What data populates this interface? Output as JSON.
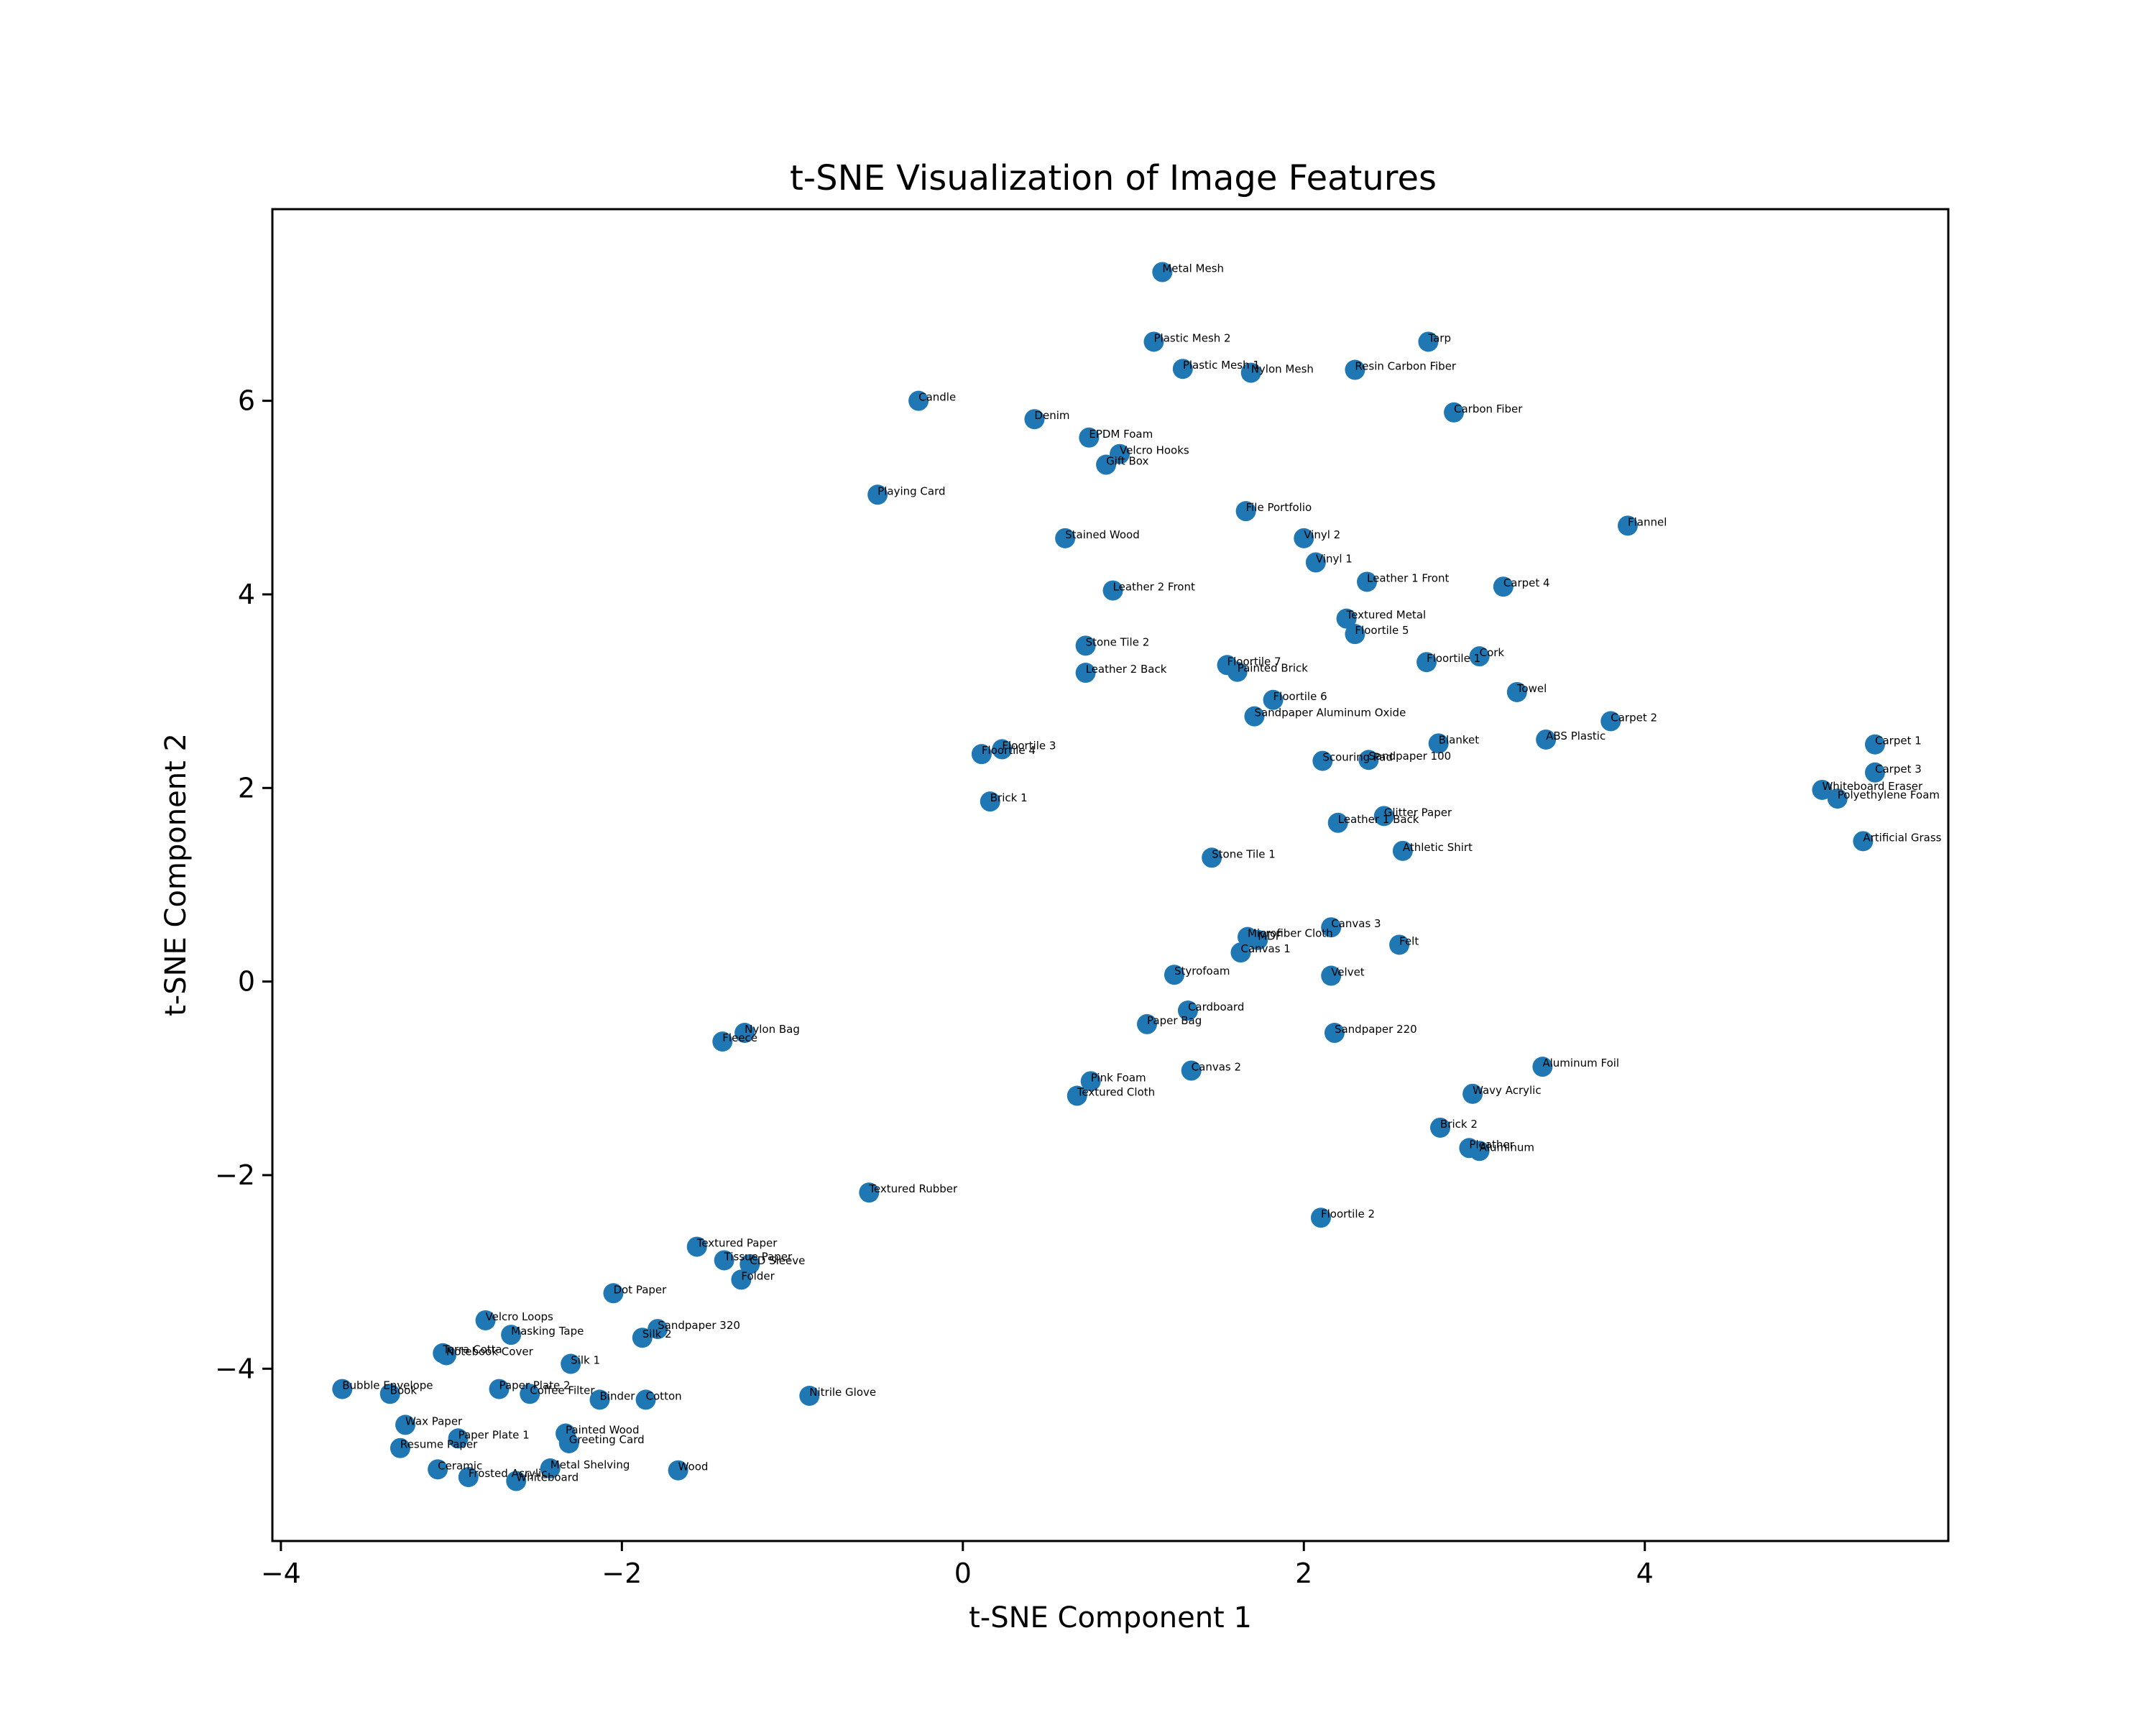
{
  "chart_data": {
    "type": "scatter",
    "title": "t-SNE Visualization of Image Features",
    "xlabel": "t-SNE Component 1",
    "ylabel": "t-SNE Component 2",
    "xlim": [
      -4.05,
      5.78
    ],
    "ylim": [
      -5.78,
      7.98
    ],
    "xticks": [
      -4,
      -2,
      0,
      2,
      4
    ],
    "yticks": [
      -4,
      -2,
      0,
      2,
      4,
      6
    ],
    "xtick_labels": [
      "−4",
      "−2",
      "0",
      "2",
      "4"
    ],
    "ytick_labels": [
      "−4",
      "−2",
      "0",
      "2",
      "4",
      "6"
    ],
    "grid": false,
    "marker_color": "#1f77b4",
    "points": [
      {
        "label": "Metal Mesh",
        "x": 1.17,
        "y": 7.33
      },
      {
        "label": "Plastic Mesh 2",
        "x": 1.12,
        "y": 6.61
      },
      {
        "label": "Plastic Mesh 1",
        "x": 1.29,
        "y": 6.33
      },
      {
        "label": "Nylon Mesh",
        "x": 1.69,
        "y": 6.29
      },
      {
        "label": "Resin Carbon Fiber",
        "x": 2.3,
        "y": 6.32
      },
      {
        "label": "Tarp",
        "x": 2.73,
        "y": 6.61
      },
      {
        "label": "Carbon Fiber",
        "x": 2.88,
        "y": 5.88
      },
      {
        "label": "Candle",
        "x": -0.26,
        "y": 6.0
      },
      {
        "label": "Denim",
        "x": 0.42,
        "y": 5.81
      },
      {
        "label": "EPDM Foam",
        "x": 0.74,
        "y": 5.62
      },
      {
        "label": "Velcro Hooks",
        "x": 0.92,
        "y": 5.45
      },
      {
        "label": "Gift Box",
        "x": 0.84,
        "y": 5.34
      },
      {
        "label": "Playing Card",
        "x": -0.5,
        "y": 5.03
      },
      {
        "label": "File Portfolio",
        "x": 1.66,
        "y": 4.86
      },
      {
        "label": "Flannel",
        "x": 3.9,
        "y": 4.71
      },
      {
        "label": "Stained Wood",
        "x": 0.6,
        "y": 4.58
      },
      {
        "label": "Vinyl 2",
        "x": 2.0,
        "y": 4.58
      },
      {
        "label": "Vinyl 1",
        "x": 2.07,
        "y": 4.33
      },
      {
        "label": "Leather 1 Front",
        "x": 2.37,
        "y": 4.13
      },
      {
        "label": "Carpet 4",
        "x": 3.17,
        "y": 4.08
      },
      {
        "label": "Leather 2 Front",
        "x": 0.88,
        "y": 4.04
      },
      {
        "label": "Textured Metal",
        "x": 2.25,
        "y": 3.75
      },
      {
        "label": "Floortile 5",
        "x": 2.3,
        "y": 3.59
      },
      {
        "label": "Stone Tile 2",
        "x": 0.72,
        "y": 3.47
      },
      {
        "label": "Cork",
        "x": 3.03,
        "y": 3.36
      },
      {
        "label": "Floortile 1",
        "x": 2.72,
        "y": 3.3
      },
      {
        "label": "Floortile 7",
        "x": 1.55,
        "y": 3.27
      },
      {
        "label": "Painted Brick",
        "x": 1.61,
        "y": 3.2
      },
      {
        "label": "Leather 2 Back",
        "x": 0.72,
        "y": 3.19
      },
      {
        "label": "Towel",
        "x": 3.25,
        "y": 2.99
      },
      {
        "label": "Floortile 6",
        "x": 1.82,
        "y": 2.91
      },
      {
        "label": "Sandpaper Aluminum Oxide",
        "x": 1.71,
        "y": 2.74
      },
      {
        "label": "Carpet 2",
        "x": 3.8,
        "y": 2.69
      },
      {
        "label": "ABS Plastic",
        "x": 3.42,
        "y": 2.5
      },
      {
        "label": "Blanket",
        "x": 2.79,
        "y": 2.46
      },
      {
        "label": "Carpet 1",
        "x": 5.35,
        "y": 2.45
      },
      {
        "label": "Floortile 3",
        "x": 0.23,
        "y": 2.4
      },
      {
        "label": "Floortile 4",
        "x": 0.11,
        "y": 2.35
      },
      {
        "label": "Scouring Pad",
        "x": 2.11,
        "y": 2.28
      },
      {
        "label": "Sandpaper 100",
        "x": 2.38,
        "y": 2.29
      },
      {
        "label": "Carpet 3",
        "x": 5.35,
        "y": 2.16
      },
      {
        "label": "Whiteboard Eraser",
        "x": 5.04,
        "y": 1.98
      },
      {
        "label": "Polyethylene Foam",
        "x": 5.13,
        "y": 1.89
      },
      {
        "label": "Brick 1",
        "x": 0.16,
        "y": 1.86
      },
      {
        "label": "Glitter Paper",
        "x": 2.47,
        "y": 1.71
      },
      {
        "label": "Leather 1 Back",
        "x": 2.2,
        "y": 1.64
      },
      {
        "label": "Artificial Grass",
        "x": 5.28,
        "y": 1.45
      },
      {
        "label": "Athletic Shirt",
        "x": 2.58,
        "y": 1.35
      },
      {
        "label": "Stone Tile 1",
        "x": 1.46,
        "y": 1.28
      },
      {
        "label": "Canvas 3",
        "x": 2.16,
        "y": 0.56
      },
      {
        "label": "MDF",
        "x": 1.73,
        "y": 0.43
      },
      {
        "label": "Microfiber Cloth",
        "x": 1.67,
        "y": 0.46
      },
      {
        "label": "Felt",
        "x": 2.56,
        "y": 0.38
      },
      {
        "label": "Canvas 1",
        "x": 1.63,
        "y": 0.3
      },
      {
        "label": "Styrofoam",
        "x": 1.24,
        "y": 0.07
      },
      {
        "label": "Velvet",
        "x": 2.16,
        "y": 0.06
      },
      {
        "label": "Cardboard",
        "x": 1.32,
        "y": -0.3
      },
      {
        "label": "Paper Bag",
        "x": 1.08,
        "y": -0.44
      },
      {
        "label": "Nylon Bag",
        "x": -1.28,
        "y": -0.53
      },
      {
        "label": "Sandpaper 220",
        "x": 2.18,
        "y": -0.53
      },
      {
        "label": "Fleece",
        "x": -1.41,
        "y": -0.62
      },
      {
        "label": "Aluminum Foil",
        "x": 3.4,
        "y": -0.88
      },
      {
        "label": "Canvas 2",
        "x": 1.34,
        "y": -0.92
      },
      {
        "label": "Pink Foam",
        "x": 0.75,
        "y": -1.03
      },
      {
        "label": "Wavy Acrylic",
        "x": 2.99,
        "y": -1.16
      },
      {
        "label": "Textured Cloth",
        "x": 0.67,
        "y": -1.18
      },
      {
        "label": "Brick 2",
        "x": 2.8,
        "y": -1.51
      },
      {
        "label": "Pleather",
        "x": 2.97,
        "y": -1.72
      },
      {
        "label": "Aluminum",
        "x": 3.03,
        "y": -1.75
      },
      {
        "label": "Textured Rubber",
        "x": -0.55,
        "y": -2.18
      },
      {
        "label": "Floortile 2",
        "x": 2.1,
        "y": -2.44
      },
      {
        "label": "Textured Paper",
        "x": -1.56,
        "y": -2.74
      },
      {
        "label": "Tissue Paper",
        "x": -1.4,
        "y": -2.88
      },
      {
        "label": "CD Sleeve",
        "x": -1.25,
        "y": -2.92
      },
      {
        "label": "Folder",
        "x": -1.3,
        "y": -3.08
      },
      {
        "label": "Dot Paper",
        "x": -2.05,
        "y": -3.22
      },
      {
        "label": "Velcro Loops",
        "x": -2.8,
        "y": -3.5
      },
      {
        "label": "Sandpaper 320",
        "x": -1.79,
        "y": -3.59
      },
      {
        "label": "Masking Tape",
        "x": -2.65,
        "y": -3.65
      },
      {
        "label": "Silk 2",
        "x": -1.88,
        "y": -3.68
      },
      {
        "label": "Terra Cotta",
        "x": -3.05,
        "y": -3.84
      },
      {
        "label": "Notebook Cover",
        "x": -3.03,
        "y": -3.86
      },
      {
        "label": "Silk 1",
        "x": -2.3,
        "y": -3.95
      },
      {
        "label": "Bubble Envelope",
        "x": -3.64,
        "y": -4.21
      },
      {
        "label": "Paper Plate 2",
        "x": -2.72,
        "y": -4.21
      },
      {
        "label": "Book",
        "x": -3.36,
        "y": -4.26
      },
      {
        "label": "Coffee Filter",
        "x": -2.54,
        "y": -4.26
      },
      {
        "label": "Nitrile Glove",
        "x": -0.9,
        "y": -4.28
      },
      {
        "label": "Binder",
        "x": -2.13,
        "y": -4.32
      },
      {
        "label": "Cotton",
        "x": -1.86,
        "y": -4.32
      },
      {
        "label": "Wax Paper",
        "x": -3.27,
        "y": -4.58
      },
      {
        "label": "Painted Wood",
        "x": -2.33,
        "y": -4.67
      },
      {
        "label": "Paper Plate 1",
        "x": -2.96,
        "y": -4.72
      },
      {
        "label": "Greeting Card",
        "x": -2.31,
        "y": -4.77
      },
      {
        "label": "Resume Paper",
        "x": -3.3,
        "y": -4.82
      },
      {
        "label": "Ceramic",
        "x": -3.08,
        "y": -5.04
      },
      {
        "label": "Metal Shelving",
        "x": -2.42,
        "y": -5.03
      },
      {
        "label": "Wood",
        "x": -1.67,
        "y": -5.05
      },
      {
        "label": "Frosted Acrylic",
        "x": -2.9,
        "y": -5.12
      },
      {
        "label": "Whiteboard",
        "x": -2.62,
        "y": -5.16
      }
    ]
  }
}
